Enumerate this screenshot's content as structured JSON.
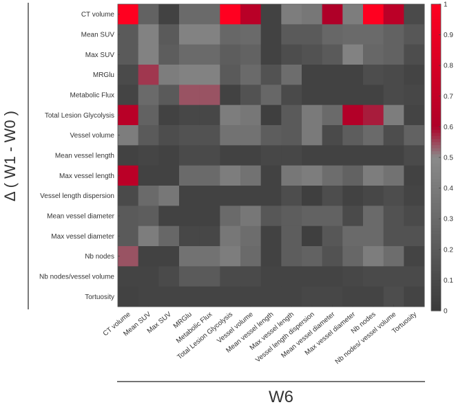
{
  "chart_data": {
    "type": "heatmap",
    "title": "",
    "xlabel": "W6",
    "ylabel": "Δ ( W1 - W0 )",
    "x_categories": [
      "CT volume",
      "Mean SUV",
      "Max SUV",
      "MRGlu",
      "Metabolic Flux",
      "Total Lesion Glycolysis",
      "Vessel volume",
      "Mean vessel length",
      "Max vessel length",
      "Vessel length dispersion",
      "Mean vessel diameter",
      "Max vessel diameter",
      "Nb nodes",
      "Nb nodes/ vessel volume",
      "Tortuosity"
    ],
    "y_categories": [
      "CT volume",
      "Mean SUV",
      "Max SUV",
      "MRGlu",
      "Metabolic Flux",
      "Total Lesion Glycolysis",
      "Vessel volume",
      "Mean vessel length",
      "Max vessel length",
      "Vessel length dispersion",
      "Mean vessel diameter",
      "Max vessel diameter",
      "Nb nodes",
      "Nb nodes/vessel volume",
      "Tortuosity"
    ],
    "values": [
      [
        1.0,
        0.25,
        0.05,
        0.3,
        0.3,
        1.0,
        0.65,
        0.05,
        0.42,
        0.38,
        0.6,
        0.42,
        1.0,
        0.66,
        0.1
      ],
      [
        0.2,
        0.45,
        0.2,
        0.45,
        0.45,
        0.28,
        0.3,
        0.05,
        0.2,
        0.2,
        0.28,
        0.3,
        0.3,
        0.25,
        0.18
      ],
      [
        0.2,
        0.45,
        0.22,
        0.3,
        0.3,
        0.22,
        0.25,
        0.05,
        0.12,
        0.15,
        0.2,
        0.45,
        0.28,
        0.25,
        0.12
      ],
      [
        0.1,
        0.56,
        0.42,
        0.45,
        0.45,
        0.2,
        0.3,
        0.15,
        0.32,
        0.05,
        0.05,
        0.05,
        0.12,
        0.1,
        0.06
      ],
      [
        0.06,
        0.3,
        0.2,
        0.54,
        0.54,
        0.05,
        0.15,
        0.28,
        0.1,
        0.05,
        0.05,
        0.05,
        0.05,
        0.1,
        0.08
      ],
      [
        0.65,
        0.25,
        0.05,
        0.08,
        0.08,
        0.42,
        0.38,
        0.03,
        0.2,
        0.4,
        0.3,
        0.62,
        0.58,
        0.42,
        0.06
      ],
      [
        0.42,
        0.2,
        0.12,
        0.15,
        0.15,
        0.35,
        0.35,
        0.22,
        0.2,
        0.4,
        0.1,
        0.22,
        0.3,
        0.12,
        0.25
      ],
      [
        0.05,
        0.07,
        0.05,
        0.1,
        0.1,
        0.05,
        0.05,
        0.08,
        0.08,
        0.05,
        0.05,
        0.05,
        0.05,
        0.05,
        0.1
      ],
      [
        0.66,
        0.05,
        0.05,
        0.3,
        0.3,
        0.42,
        0.35,
        0.05,
        0.38,
        0.42,
        0.32,
        0.25,
        0.42,
        0.35,
        0.05
      ],
      [
        0.1,
        0.3,
        0.38,
        0.05,
        0.05,
        0.05,
        0.05,
        0.05,
        0.12,
        0.03,
        0.12,
        0.05,
        0.08,
        0.12,
        0.06
      ],
      [
        0.2,
        0.22,
        0.05,
        0.05,
        0.05,
        0.3,
        0.38,
        0.18,
        0.22,
        0.25,
        0.25,
        0.1,
        0.3,
        0.15,
        0.1
      ],
      [
        0.2,
        0.42,
        0.28,
        0.08,
        0.08,
        0.38,
        0.32,
        0.05,
        0.22,
        0.03,
        0.18,
        0.3,
        0.3,
        0.15,
        0.15
      ],
      [
        0.54,
        0.05,
        0.05,
        0.35,
        0.35,
        0.42,
        0.3,
        0.05,
        0.22,
        0.25,
        0.15,
        0.28,
        0.42,
        0.32,
        0.06
      ],
      [
        0.06,
        0.06,
        0.1,
        0.2,
        0.2,
        0.1,
        0.1,
        0.06,
        0.06,
        0.06,
        0.06,
        0.08,
        0.1,
        0.1,
        0.1
      ],
      [
        0.05,
        0.06,
        0.06,
        0.06,
        0.06,
        0.06,
        0.06,
        0.06,
        0.06,
        0.08,
        0.08,
        0.06,
        0.06,
        0.12,
        0.06
      ]
    ],
    "colorbar": {
      "range": [
        0,
        1
      ],
      "ticks": [
        "0",
        "0.1",
        "0.2",
        "0.3",
        "0.4",
        "0.5",
        "0.6",
        "0.7",
        "0.8",
        "0.9",
        "1"
      ]
    },
    "colormap": {
      "low": "#3a3a3a",
      "mid": "#8a8a8a",
      "dark_red": "#af0028",
      "high": "#ff0020"
    }
  }
}
